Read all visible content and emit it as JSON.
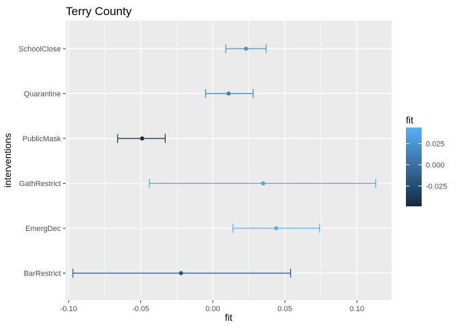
{
  "chart_data": {
    "type": "errorbar",
    "title": "Terry County",
    "xlabel": "fit",
    "ylabel": "interventions",
    "xlim": [
      -0.102,
      0.124
    ],
    "x_ticks": [
      -0.1,
      -0.05,
      0.0,
      0.05,
      0.1
    ],
    "x_tick_labels": [
      "-0.10",
      "-0.05",
      "0.00",
      "0.05",
      "0.10"
    ],
    "categories": [
      "SchoolClose",
      "Quarantine",
      "PublicMask",
      "GathRestrict",
      "EmergDec",
      "BarRestrict"
    ],
    "points": [
      {
        "label": "SchoolClose",
        "fit": 0.023,
        "lower": 0.009,
        "upper": 0.037
      },
      {
        "label": "Quarantine",
        "fit": 0.011,
        "lower": -0.005,
        "upper": 0.028
      },
      {
        "label": "PublicMask",
        "fit": -0.049,
        "lower": -0.066,
        "upper": -0.033
      },
      {
        "label": "GathRestrict",
        "fit": 0.035,
        "lower": -0.044,
        "upper": 0.113
      },
      {
        "label": "EmergDec",
        "fit": 0.044,
        "lower": 0.014,
        "upper": 0.074
      },
      {
        "label": "BarRestrict",
        "fit": -0.022,
        "lower": -0.097,
        "upper": 0.054
      }
    ],
    "grid": true,
    "legend": {
      "title": "fit",
      "position": "right",
      "range": [
        -0.049,
        0.044
      ],
      "ticks": [
        0.025,
        0.0,
        -0.025
      ],
      "tick_labels": [
        "0.025",
        "0.000",
        "-0.025"
      ],
      "color_low": "#132B43",
      "color_high": "#56B1F7"
    },
    "panel_background": "#EBEBEB",
    "grid_color": "#FFFFFF"
  }
}
